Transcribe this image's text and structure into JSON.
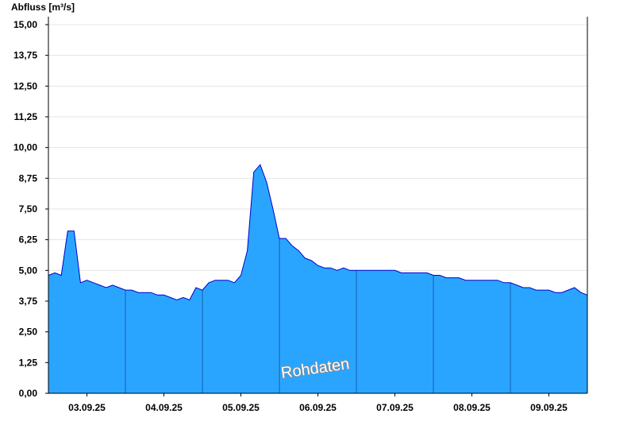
{
  "chart_data": {
    "type": "area",
    "y_label": "Abfluss [m³/s]",
    "annotation": "Rohdaten",
    "xlim": [
      0,
      7
    ],
    "xticks": [
      {
        "value": 0.5,
        "label": "03.09.25"
      },
      {
        "value": 1.5,
        "label": "04.09.25"
      },
      {
        "value": 2.5,
        "label": "05.09.25"
      },
      {
        "value": 3.5,
        "label": "06.09.25"
      },
      {
        "value": 4.5,
        "label": "07.09.25"
      },
      {
        "value": 5.5,
        "label": "08.09.25"
      },
      {
        "value": 6.5,
        "label": "09.09.25"
      }
    ],
    "ylim": [
      0,
      15
    ],
    "yticks": [
      {
        "value": 0,
        "label": "0,00"
      },
      {
        "value": 1.25,
        "label": "1,25"
      },
      {
        "value": 2.5,
        "label": "2,50"
      },
      {
        "value": 3.75,
        "label": "3,75"
      },
      {
        "value": 5,
        "label": "5,00"
      },
      {
        "value": 6.25,
        "label": "6,25"
      },
      {
        "value": 7.5,
        "label": "7,50"
      },
      {
        "value": 8.75,
        "label": "8,75"
      },
      {
        "value": 10,
        "label": "10,00"
      },
      {
        "value": 11.25,
        "label": "11,25"
      },
      {
        "value": 12.5,
        "label": "12,50"
      },
      {
        "value": 13.75,
        "label": "13,75"
      },
      {
        "value": 15,
        "label": "15,00"
      }
    ],
    "grid": true,
    "color": "#2aa5ff",
    "line_color": "#0000cc",
    "values": [
      4.8,
      4.9,
      4.8,
      6.6,
      6.6,
      4.5,
      4.6,
      4.5,
      4.4,
      4.3,
      4.4,
      4.3,
      4.2,
      4.2,
      4.1,
      4.1,
      4.1,
      4.0,
      4.0,
      3.9,
      3.8,
      3.9,
      3.8,
      4.3,
      4.2,
      4.5,
      4.6,
      4.6,
      4.6,
      4.5,
      4.8,
      5.8,
      9.0,
      9.3,
      8.6,
      7.5,
      6.3,
      6.3,
      6.0,
      5.8,
      5.5,
      5.4,
      5.2,
      5.1,
      5.1,
      5.0,
      5.1,
      5.0,
      5.0,
      5.0,
      5.0,
      5.0,
      5.0,
      5.0,
      5.0,
      4.9,
      4.9,
      4.9,
      4.9,
      4.9,
      4.8,
      4.8,
      4.7,
      4.7,
      4.7,
      4.6,
      4.6,
      4.6,
      4.6,
      4.6,
      4.6,
      4.5,
      4.5,
      4.4,
      4.3,
      4.3,
      4.2,
      4.2,
      4.2,
      4.1,
      4.1,
      4.2,
      4.3,
      4.1,
      4.0
    ]
  }
}
